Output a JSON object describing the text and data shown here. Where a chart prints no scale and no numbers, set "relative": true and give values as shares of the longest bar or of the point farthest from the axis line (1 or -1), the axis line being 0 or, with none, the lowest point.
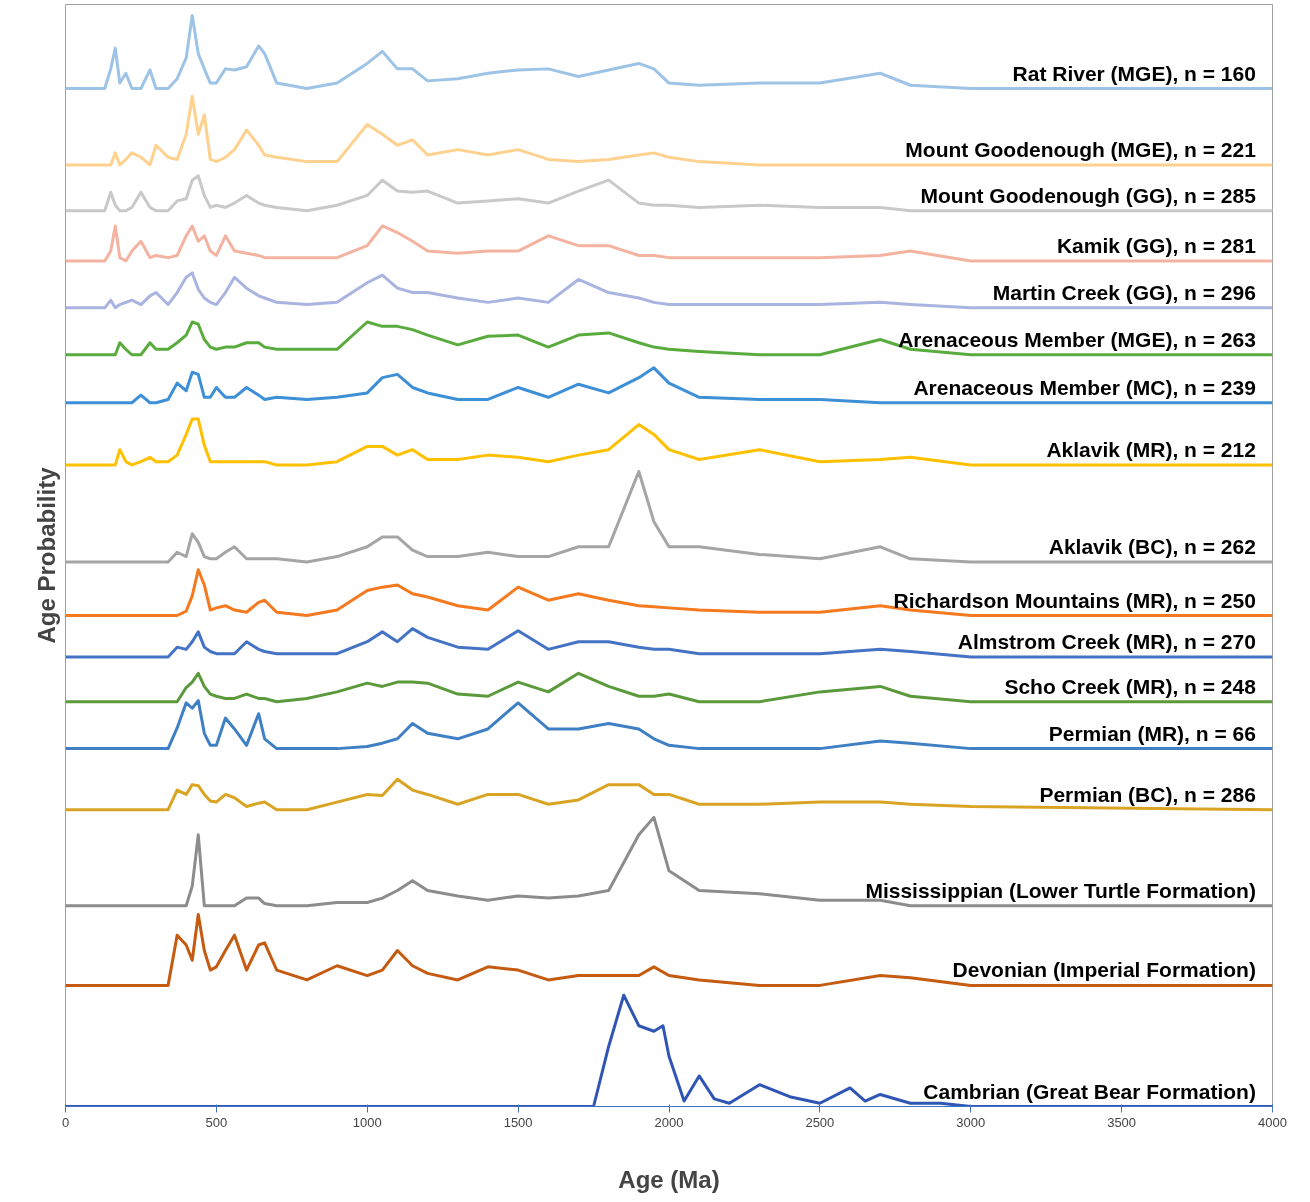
{
  "chart_data": {
    "type": "line",
    "xlabel": "Age (Ma)",
    "ylabel": "Age Probability",
    "relative": true,
    "xlim": [
      0,
      4000
    ],
    "xticks": [
      0,
      500,
      1000,
      1500,
      2000,
      2500,
      3000,
      3500,
      4000
    ],
    "x": [
      0,
      130,
      150,
      165,
      180,
      200,
      220,
      250,
      280,
      300,
      340,
      370,
      400,
      420,
      440,
      460,
      480,
      500,
      530,
      560,
      600,
      640,
      660,
      700,
      800,
      900,
      1000,
      1050,
      1100,
      1150,
      1200,
      1300,
      1400,
      1500,
      1600,
      1700,
      1800,
      1900,
      1950,
      2000,
      2100,
      2300,
      2500,
      2700,
      2800,
      3000,
      4000
    ],
    "series": [
      {
        "name": "Rat River (MGE), n = 160",
        "color": "#9dc3e6",
        "values": [
          0.933,
          0.933,
          0.951,
          0.97,
          0.938,
          0.947,
          0.933,
          0.933,
          0.95,
          0.933,
          0.933,
          0.942,
          0.961,
          1.0,
          0.965,
          0.951,
          0.938,
          0.938,
          0.951,
          0.95,
          0.953,
          0.972,
          0.965,
          0.938,
          0.933,
          0.938,
          0.956,
          0.967,
          0.951,
          0.951,
          0.94,
          0.942,
          0.947,
          0.95,
          0.951,
          0.944,
          0.95,
          0.956,
          0.951,
          0.938,
          0.936,
          0.938,
          0.938,
          0.947,
          0.936,
          0.933,
          0.933
        ]
      },
      {
        "name": "Mount Goodenough (MGE), n = 221",
        "color": "#ffd18f",
        "values": [
          0.863,
          0.863,
          0.863,
          0.874,
          0.863,
          0.868,
          0.874,
          0.87,
          0.863,
          0.881,
          0.87,
          0.868,
          0.891,
          0.926,
          0.891,
          0.909,
          0.868,
          0.866,
          0.87,
          0.877,
          0.895,
          0.881,
          0.872,
          0.87,
          0.866,
          0.866,
          0.9,
          0.891,
          0.881,
          0.886,
          0.872,
          0.877,
          0.872,
          0.877,
          0.868,
          0.866,
          0.868,
          0.872,
          0.874,
          0.87,
          0.866,
          0.863,
          0.863,
          0.863,
          0.863,
          0.863,
          0.863
        ]
      },
      {
        "name": "Mount Goodenough (GG), n = 285",
        "color": "#c9c9c9",
        "values": [
          0.821,
          0.821,
          0.838,
          0.826,
          0.821,
          0.821,
          0.824,
          0.838,
          0.824,
          0.821,
          0.821,
          0.83,
          0.832,
          0.849,
          0.853,
          0.835,
          0.824,
          0.826,
          0.824,
          0.828,
          0.835,
          0.828,
          0.826,
          0.824,
          0.821,
          0.826,
          0.835,
          0.849,
          0.839,
          0.838,
          0.839,
          0.828,
          0.83,
          0.832,
          0.828,
          0.839,
          0.849,
          0.828,
          0.826,
          0.826,
          0.824,
          0.826,
          0.824,
          0.824,
          0.821,
          0.821,
          0.821
        ]
      },
      {
        "name": "Kamik (GG), n = 281",
        "color": "#f4b3a0",
        "values": [
          0.775,
          0.775,
          0.784,
          0.807,
          0.778,
          0.775,
          0.784,
          0.793,
          0.778,
          0.78,
          0.778,
          0.78,
          0.798,
          0.807,
          0.793,
          0.798,
          0.784,
          0.78,
          0.798,
          0.784,
          0.782,
          0.78,
          0.778,
          0.778,
          0.778,
          0.778,
          0.789,
          0.807,
          0.801,
          0.793,
          0.784,
          0.782,
          0.784,
          0.784,
          0.798,
          0.789,
          0.789,
          0.78,
          0.78,
          0.778,
          0.778,
          0.778,
          0.778,
          0.78,
          0.784,
          0.775,
          0.775
        ]
      },
      {
        "name": "Martin Creek (GG), n = 296",
        "color": "#a9b4e0",
        "values": [
          0.732,
          0.732,
          0.739,
          0.732,
          0.735,
          0.737,
          0.739,
          0.735,
          0.743,
          0.746,
          0.735,
          0.746,
          0.76,
          0.764,
          0.749,
          0.741,
          0.737,
          0.735,
          0.746,
          0.76,
          0.75,
          0.743,
          0.741,
          0.737,
          0.735,
          0.737,
          0.755,
          0.762,
          0.75,
          0.746,
          0.746,
          0.741,
          0.737,
          0.741,
          0.737,
          0.758,
          0.746,
          0.741,
          0.737,
          0.735,
          0.735,
          0.735,
          0.735,
          0.737,
          0.735,
          0.732,
          0.732
        ]
      },
      {
        "name": "Arenaceous Member (MGE), n = 263",
        "color": "#5aab3e",
        "values": [
          0.689,
          0.689,
          0.689,
          0.689,
          0.7,
          0.694,
          0.689,
          0.689,
          0.7,
          0.694,
          0.694,
          0.7,
          0.707,
          0.719,
          0.717,
          0.703,
          0.696,
          0.694,
          0.696,
          0.696,
          0.7,
          0.7,
          0.696,
          0.694,
          0.694,
          0.694,
          0.719,
          0.715,
          0.715,
          0.712,
          0.707,
          0.698,
          0.706,
          0.707,
          0.696,
          0.707,
          0.709,
          0.7,
          0.696,
          0.694,
          0.692,
          0.689,
          0.689,
          0.703,
          0.694,
          0.689,
          0.689
        ]
      },
      {
        "name": "Arenaceous Member (MC), n = 239",
        "color": "#3d8fd6",
        "values": [
          0.645,
          0.645,
          0.645,
          0.645,
          0.645,
          0.645,
          0.645,
          0.652,
          0.645,
          0.645,
          0.648,
          0.663,
          0.656,
          0.673,
          0.671,
          0.65,
          0.65,
          0.659,
          0.65,
          0.65,
          0.659,
          0.652,
          0.648,
          0.65,
          0.648,
          0.65,
          0.654,
          0.668,
          0.671,
          0.659,
          0.654,
          0.648,
          0.648,
          0.659,
          0.65,
          0.662,
          0.654,
          0.668,
          0.677,
          0.663,
          0.65,
          0.648,
          0.648,
          0.645,
          0.645,
          0.645,
          0.645
        ]
      },
      {
        "name": "Aklavik (MR), n = 212",
        "color": "#ffc000",
        "values": [
          0.588,
          0.588,
          0.588,
          0.588,
          0.602,
          0.591,
          0.588,
          0.591,
          0.595,
          0.591,
          0.591,
          0.597,
          0.616,
          0.63,
          0.63,
          0.606,
          0.591,
          0.591,
          0.591,
          0.591,
          0.591,
          0.591,
          0.591,
          0.588,
          0.588,
          0.591,
          0.605,
          0.605,
          0.597,
          0.602,
          0.593,
          0.593,
          0.597,
          0.595,
          0.591,
          0.597,
          0.602,
          0.625,
          0.616,
          0.602,
          0.593,
          0.602,
          0.591,
          0.593,
          0.595,
          0.588,
          0.588
        ]
      },
      {
        "name": "Aklavik (BC), n = 262",
        "color": "#a5a5a5",
        "values": [
          0.499,
          0.499,
          0.499,
          0.499,
          0.499,
          0.499,
          0.499,
          0.499,
          0.499,
          0.499,
          0.499,
          0.508,
          0.504,
          0.525,
          0.517,
          0.504,
          0.502,
          0.502,
          0.508,
          0.513,
          0.502,
          0.502,
          0.502,
          0.502,
          0.499,
          0.504,
          0.513,
          0.522,
          0.522,
          0.51,
          0.504,
          0.504,
          0.508,
          0.504,
          0.504,
          0.513,
          0.513,
          0.582,
          0.536,
          0.513,
          0.513,
          0.506,
          0.502,
          0.513,
          0.502,
          0.499,
          0.499
        ]
      },
      {
        "name": "Richardson Mountains (MR), n = 250",
        "color": "#f5791f",
        "values": [
          0.45,
          0.45,
          0.45,
          0.45,
          0.45,
          0.45,
          0.45,
          0.45,
          0.45,
          0.45,
          0.45,
          0.45,
          0.454,
          0.468,
          0.492,
          0.478,
          0.455,
          0.457,
          0.459,
          0.455,
          0.453,
          0.462,
          0.464,
          0.453,
          0.45,
          0.455,
          0.473,
          0.476,
          0.478,
          0.47,
          0.467,
          0.459,
          0.455,
          0.476,
          0.464,
          0.47,
          0.464,
          0.459,
          0.458,
          0.457,
          0.455,
          0.453,
          0.453,
          0.459,
          0.455,
          0.45,
          0.45
        ]
      },
      {
        "name": "Almstrom Creek (MR), n = 270",
        "color": "#4472c4",
        "values": [
          0.412,
          0.412,
          0.412,
          0.412,
          0.412,
          0.412,
          0.412,
          0.412,
          0.412,
          0.412,
          0.412,
          0.421,
          0.419,
          0.426,
          0.435,
          0.421,
          0.417,
          0.415,
          0.415,
          0.415,
          0.426,
          0.419,
          0.417,
          0.415,
          0.415,
          0.415,
          0.426,
          0.435,
          0.426,
          0.438,
          0.43,
          0.421,
          0.419,
          0.436,
          0.419,
          0.426,
          0.426,
          0.421,
          0.419,
          0.419,
          0.415,
          0.415,
          0.415,
          0.419,
          0.417,
          0.412,
          0.412
        ]
      },
      {
        "name": "Scho Creek (MR), n = 248",
        "color": "#5b9a3b",
        "values": [
          0.371,
          0.371,
          0.371,
          0.371,
          0.371,
          0.371,
          0.371,
          0.371,
          0.371,
          0.371,
          0.371,
          0.371,
          0.384,
          0.389,
          0.397,
          0.385,
          0.378,
          0.376,
          0.374,
          0.374,
          0.378,
          0.374,
          0.374,
          0.371,
          0.374,
          0.38,
          0.388,
          0.385,
          0.389,
          0.389,
          0.388,
          0.378,
          0.376,
          0.389,
          0.38,
          0.397,
          0.385,
          0.376,
          0.376,
          0.378,
          0.371,
          0.371,
          0.38,
          0.385,
          0.376,
          0.371,
          0.371
        ]
      },
      {
        "name": "Permian (MR), n = 66",
        "color": "#3f80c4",
        "values": [
          0.328,
          0.328,
          0.328,
          0.328,
          0.328,
          0.328,
          0.328,
          0.328,
          0.328,
          0.328,
          0.328,
          0.347,
          0.37,
          0.365,
          0.372,
          0.342,
          0.331,
          0.331,
          0.356,
          0.346,
          0.331,
          0.36,
          0.337,
          0.328,
          0.328,
          0.328,
          0.33,
          0.333,
          0.337,
          0.351,
          0.342,
          0.337,
          0.346,
          0.37,
          0.346,
          0.346,
          0.351,
          0.346,
          0.337,
          0.331,
          0.328,
          0.328,
          0.328,
          0.335,
          0.333,
          0.328,
          0.328
        ]
      },
      {
        "name": "Permian (BC), n = 286",
        "color": "#d9a424",
        "values": [
          0.272,
          0.272,
          0.272,
          0.272,
          0.272,
          0.272,
          0.272,
          0.272,
          0.272,
          0.272,
          0.272,
          0.29,
          0.286,
          0.295,
          0.294,
          0.286,
          0.28,
          0.279,
          0.286,
          0.283,
          0.275,
          0.278,
          0.279,
          0.272,
          0.272,
          0.279,
          0.286,
          0.285,
          0.3,
          0.29,
          0.286,
          0.277,
          0.286,
          0.286,
          0.277,
          0.281,
          0.295,
          0.295,
          0.286,
          0.286,
          0.277,
          0.277,
          0.279,
          0.279,
          0.277,
          0.275,
          0.272
        ]
      },
      {
        "name": "Mississippian (Lower Turtle Formation)",
        "color": "#8c8c8c",
        "values": [
          0.184,
          0.184,
          0.184,
          0.184,
          0.184,
          0.184,
          0.184,
          0.184,
          0.184,
          0.184,
          0.184,
          0.184,
          0.184,
          0.202,
          0.249,
          0.184,
          0.184,
          0.184,
          0.184,
          0.184,
          0.191,
          0.191,
          0.186,
          0.184,
          0.184,
          0.187,
          0.187,
          0.191,
          0.198,
          0.207,
          0.198,
          0.193,
          0.189,
          0.193,
          0.191,
          0.193,
          0.198,
          0.249,
          0.265,
          0.216,
          0.198,
          0.195,
          0.189,
          0.189,
          0.184,
          0.184,
          0.184
        ]
      },
      {
        "name": "Devonian (Imperial Formation)",
        "color": "#c55a11",
        "values": [
          0.111,
          0.111,
          0.111,
          0.111,
          0.111,
          0.111,
          0.111,
          0.111,
          0.111,
          0.111,
          0.111,
          0.157,
          0.148,
          0.134,
          0.176,
          0.143,
          0.125,
          0.128,
          0.143,
          0.157,
          0.125,
          0.148,
          0.15,
          0.125,
          0.116,
          0.129,
          0.12,
          0.125,
          0.143,
          0.129,
          0.122,
          0.116,
          0.128,
          0.125,
          0.116,
          0.12,
          0.12,
          0.12,
          0.128,
          0.12,
          0.116,
          0.111,
          0.111,
          0.12,
          0.118,
          0.111,
          0.111
        ]
      },
      {
        "name": "Cambrian (Great Bear Formation)",
        "color": "#2f55b5",
        "x": [
          0,
          1700,
          1750,
          1800,
          1850,
          1900,
          1950,
          1980,
          2000,
          2050,
          2100,
          2150,
          2200,
          2300,
          2400,
          2500,
          2600,
          2650,
          2700,
          2800,
          2900,
          3000,
          4000
        ],
        "values": [
          0,
          0,
          0,
          0.055,
          0.102,
          0.074,
          0.069,
          0.074,
          0.046,
          0.005,
          0.028,
          0.007,
          0.003,
          0.02,
          0.009,
          0.003,
          0.017,
          0.005,
          0.011,
          0.003,
          0.003,
          0,
          0
        ]
      }
    ]
  }
}
